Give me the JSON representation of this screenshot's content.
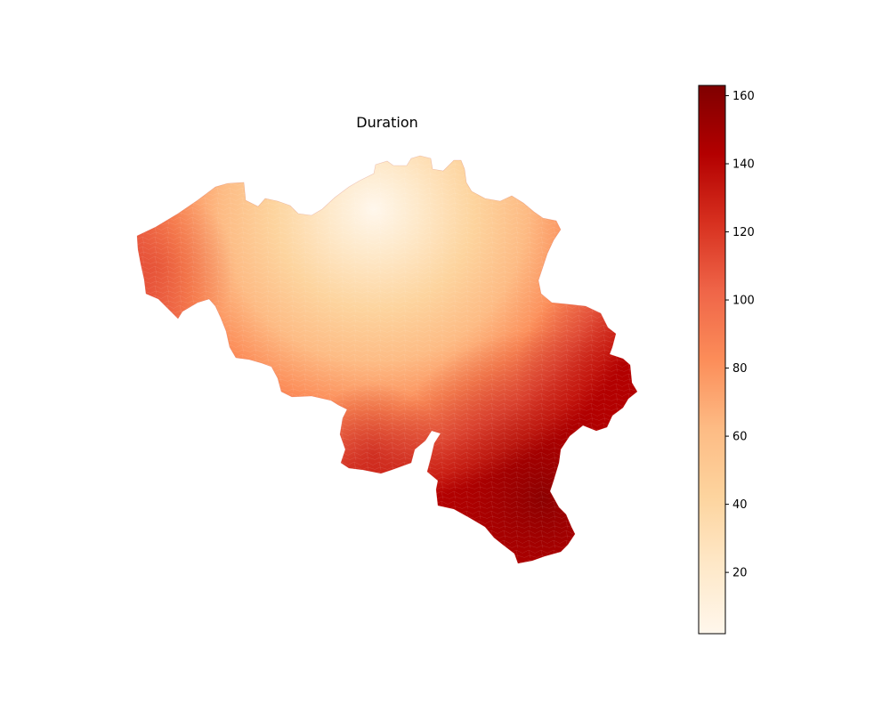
{
  "map": {
    "title": "Duration",
    "region": "Belgium",
    "colormap": "OrRd",
    "value_range": [
      2,
      163
    ],
    "description_gradient": {
      "low_near": "Brussels (center-north)",
      "high_near": "Luxembourg province (south-east)"
    }
  },
  "colorbar": {
    "min": 2,
    "max": 163,
    "ticks": [
      20,
      40,
      60,
      80,
      100,
      120,
      140,
      160
    ],
    "tick_labels": [
      "20",
      "40",
      "60",
      "80",
      "100",
      "120",
      "140",
      "160"
    ],
    "colors": {
      "stop0": "#fff7ec",
      "stop1": "#fee8c8",
      "stop2": "#fdd49e",
      "stop3": "#fdbb84",
      "stop4": "#fc8d59",
      "stop5": "#ef6548",
      "stop6": "#d7301f",
      "stop7": "#b30000",
      "stop8": "#7f0000"
    }
  }
}
